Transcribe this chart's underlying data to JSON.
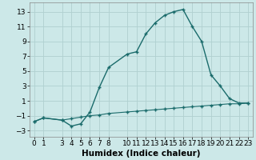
{
  "title": "",
  "xlabel": "Humidex (Indice chaleur)",
  "ylabel": "",
  "xlim": [
    -0.5,
    23.5
  ],
  "ylim": [
    -3.8,
    14.2
  ],
  "background_color": "#cce8e8",
  "grid_color": "#b0d0d0",
  "line_color": "#1a6b6b",
  "line1_x": [
    0,
    1,
    3,
    4,
    5,
    6,
    7,
    8,
    10,
    11,
    12,
    13,
    14,
    15,
    16,
    17,
    18,
    19,
    20,
    21,
    22,
    23
  ],
  "line1_y": [
    -1.8,
    -1.3,
    -1.6,
    -2.4,
    -2.1,
    -0.5,
    2.8,
    5.5,
    7.3,
    7.6,
    10.0,
    11.5,
    12.5,
    13.0,
    13.3,
    11.0,
    9.0,
    4.5,
    3.0,
    1.3,
    0.7,
    0.7
  ],
  "line2_x": [
    0,
    1,
    3,
    4,
    5,
    6,
    7,
    8,
    10,
    11,
    12,
    13,
    14,
    15,
    16,
    17,
    18,
    19,
    20,
    21,
    22,
    23
  ],
  "line2_y": [
    -1.8,
    -1.3,
    -1.6,
    -1.4,
    -1.2,
    -1.0,
    -0.9,
    -0.7,
    -0.5,
    -0.4,
    -0.3,
    -0.2,
    -0.1,
    0.0,
    0.1,
    0.2,
    0.3,
    0.4,
    0.5,
    0.6,
    0.6,
    0.7
  ],
  "xticks": [
    0,
    1,
    3,
    4,
    5,
    6,
    7,
    8,
    10,
    11,
    12,
    13,
    14,
    15,
    16,
    17,
    18,
    19,
    20,
    21,
    22,
    23
  ],
  "yticks": [
    -3,
    -1,
    1,
    3,
    5,
    7,
    9,
    11,
    13
  ],
  "tick_fontsize": 6.5,
  "xlabel_fontsize": 7.5
}
